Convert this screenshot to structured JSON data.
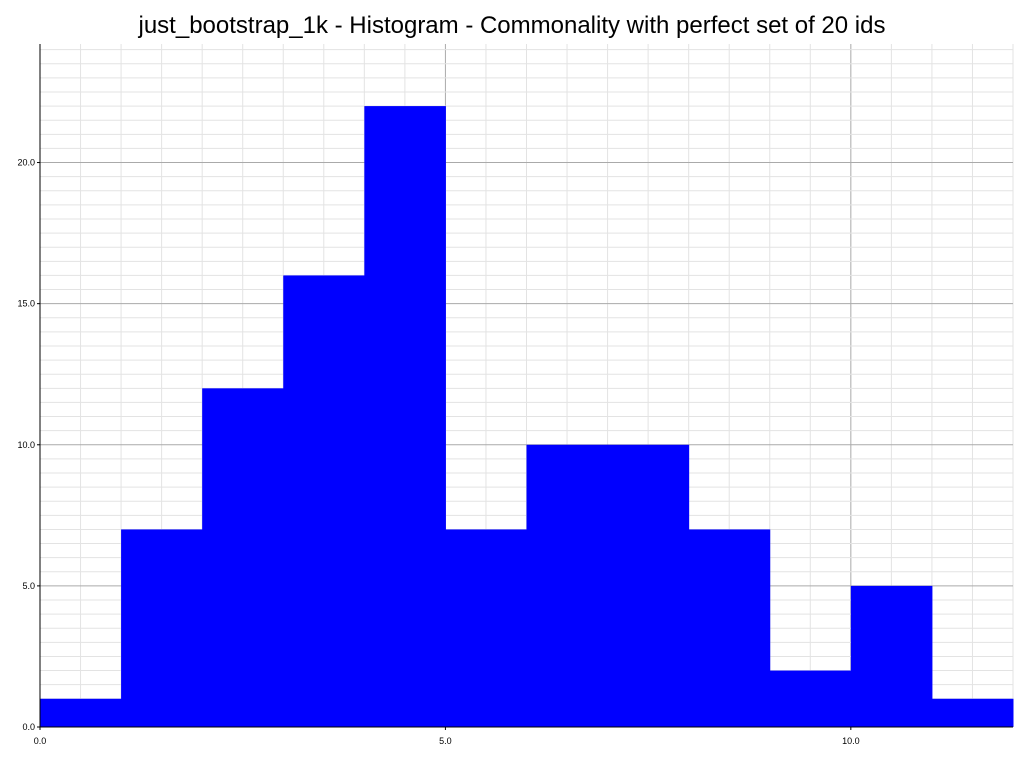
{
  "chart_data": {
    "type": "bar",
    "title": "just_bootstrap_1k - Histogram - Commonality with perfect set of 20 ids",
    "xlabel": "",
    "ylabel": "",
    "bins": [
      {
        "x0": 0,
        "x1": 1,
        "value": 1
      },
      {
        "x0": 1,
        "x1": 2,
        "value": 7
      },
      {
        "x0": 2,
        "x1": 3,
        "value": 12
      },
      {
        "x0": 3,
        "x1": 4,
        "value": 16
      },
      {
        "x0": 4,
        "x1": 5,
        "value": 22
      },
      {
        "x0": 5,
        "x1": 6,
        "value": 7
      },
      {
        "x0": 6,
        "x1": 7,
        "value": 10
      },
      {
        "x0": 7,
        "x1": 8,
        "value": 10
      },
      {
        "x0": 8,
        "x1": 9,
        "value": 7
      },
      {
        "x0": 9,
        "x1": 10,
        "value": 2
      },
      {
        "x0": 10,
        "x1": 11,
        "value": 5
      },
      {
        "x0": 11,
        "x1": 12,
        "value": 1
      }
    ],
    "xlim": [
      0,
      12
    ],
    "ylim": [
      0,
      24.2
    ],
    "x_ticks": [
      0,
      5,
      10
    ],
    "x_tick_labels": [
      "0.0",
      "5.0",
      "10.0"
    ],
    "y_ticks": [
      0,
      5,
      10,
      15,
      20
    ],
    "y_tick_labels": [
      "0.0",
      "5.0",
      "10.0",
      "15.0",
      "20.0"
    ],
    "grid": true,
    "bar_color": "#0000ff"
  }
}
